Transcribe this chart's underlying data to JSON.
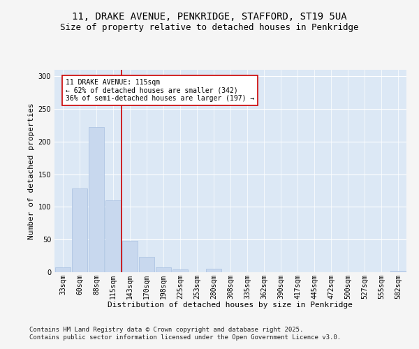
{
  "title_line1": "11, DRAKE AVENUE, PENKRIDGE, STAFFORD, ST19 5UA",
  "title_line2": "Size of property relative to detached houses in Penkridge",
  "xlabel": "Distribution of detached houses by size in Penkridge",
  "ylabel": "Number of detached properties",
  "footnote1": "Contains HM Land Registry data © Crown copyright and database right 2025.",
  "footnote2": "Contains public sector information licensed under the Open Government Licence v3.0.",
  "annotation_line1": "11 DRAKE AVENUE: 115sqm",
  "annotation_line2": "← 62% of detached houses are smaller (342)",
  "annotation_line3": "36% of semi-detached houses are larger (197) →",
  "bar_color": "#c8d8ee",
  "bar_edge_color": "#a8c0e0",
  "vline_color": "#cc0000",
  "vline_x_index": 3,
  "categories": [
    "33sqm",
    "60sqm",
    "88sqm",
    "115sqm",
    "143sqm",
    "170sqm",
    "198sqm",
    "225sqm",
    "253sqm",
    "280sqm",
    "308sqm",
    "335sqm",
    "362sqm",
    "390sqm",
    "417sqm",
    "445sqm",
    "472sqm",
    "500sqm",
    "527sqm",
    "555sqm",
    "582sqm"
  ],
  "values": [
    7,
    128,
    222,
    110,
    48,
    23,
    8,
    4,
    0,
    5,
    0,
    0,
    0,
    0,
    0,
    0,
    0,
    0,
    0,
    0,
    2
  ],
  "ylim": [
    0,
    310
  ],
  "yticks": [
    0,
    50,
    100,
    150,
    200,
    250,
    300
  ],
  "background_color": "#dce8f5",
  "grid_color": "#ffffff",
  "fig_bg_color": "#f5f5f5",
  "title_fontsize": 10,
  "subtitle_fontsize": 9,
  "axis_label_fontsize": 8,
  "tick_fontsize": 7,
  "annotation_fontsize": 7,
  "footnote_fontsize": 6.5
}
